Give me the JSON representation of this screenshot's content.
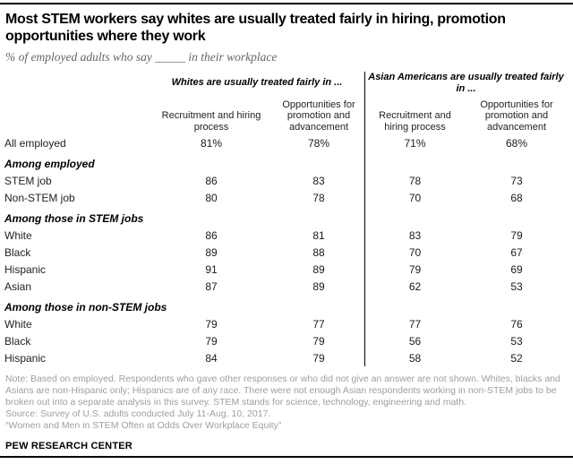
{
  "colors": {
    "rule": "#000000",
    "title_text": "#000000",
    "subtitle_gray": "#666666",
    "note_gray": "#9e9e9e",
    "divider": "#000000"
  },
  "header": {
    "title": "Most STEM workers say whites are usually treated fairly in hiring, promotion opportunities where they work",
    "subtitle": "% of employed adults who say _____ in their workplace"
  },
  "chart_data": {
    "type": "table",
    "title": "Most STEM workers say whites are usually treated fairly in hiring, promotion opportunities where they work",
    "subtitle": "% of employed adults who say _____ in their workplace",
    "group_headers": [
      "Whites are usually treated fairly in ...",
      "Asian Americans are usually treated fairly in ..."
    ],
    "columns": [
      "Recruitment and hiring process",
      "Opportunities for promotion and advancement",
      "Recruitment and hiring process",
      "Opportunities for promotion and advancement"
    ],
    "rows": [
      {
        "label": "All employed",
        "values": [
          "81%",
          "78%",
          "71%",
          "68%"
        ]
      },
      {
        "section": "Among employed"
      },
      {
        "label": "STEM job",
        "values": [
          "86",
          "83",
          "78",
          "73"
        ]
      },
      {
        "label": "Non-STEM job",
        "values": [
          "80",
          "78",
          "70",
          "68"
        ]
      },
      {
        "section": "Among those in STEM jobs"
      },
      {
        "label": "White",
        "values": [
          "86",
          "81",
          "83",
          "79"
        ]
      },
      {
        "label": "Black",
        "values": [
          "89",
          "88",
          "70",
          "67"
        ]
      },
      {
        "label": "Hispanic",
        "values": [
          "91",
          "89",
          "79",
          "69"
        ]
      },
      {
        "label": "Asian",
        "values": [
          "87",
          "89",
          "62",
          "53"
        ]
      },
      {
        "section": "Among those in non-STEM jobs"
      },
      {
        "label": "White",
        "values": [
          "79",
          "77",
          "77",
          "76"
        ]
      },
      {
        "label": "Black",
        "values": [
          "79",
          "79",
          "56",
          "53"
        ]
      },
      {
        "label": "Hispanic",
        "values": [
          "84",
          "79",
          "58",
          "52"
        ]
      }
    ]
  },
  "footer": {
    "note": "Note: Based on employed. Respondents who gave other responses or who did not give an answer are not shown. Whites, blacks and Asians are non-Hispanic only; Hispanics are of any race. There were not enough Asian respondents working in non-STEM jobs to be broken out into a separate analysis in this survey. STEM stands for science, technology, engineering and math.",
    "source": "Source: Survey of U.S. adults conducted July 11-Aug. 10, 2017.",
    "quote": "“Women and Men in STEM Often at Odds Over Workplace Equity”",
    "brand": "PEW RESEARCH CENTER"
  }
}
